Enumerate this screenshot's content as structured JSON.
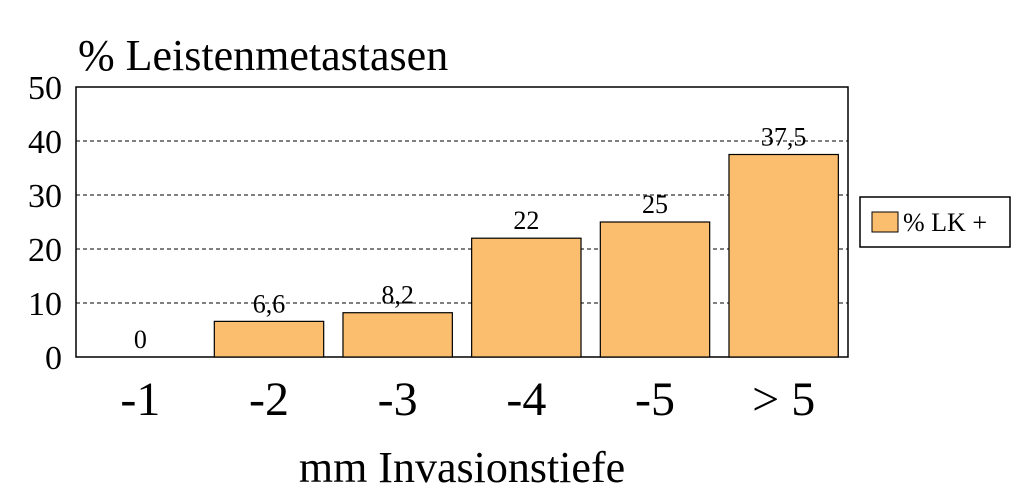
{
  "chart_data": {
    "type": "bar",
    "title": "% Leistenmetastasen",
    "xlabel": "mm Invasionstiefe",
    "ylabel": "",
    "categories": [
      "-1",
      "-2",
      "-3",
      "-4",
      "-5",
      "> 5"
    ],
    "series": [
      {
        "name": "% LK +",
        "values": [
          0,
          6.6,
          8.2,
          22,
          25,
          37.5
        ],
        "labels": [
          "0",
          "6,6",
          "8,2",
          "22",
          "25",
          "37,5"
        ],
        "color": "#fbbe6e"
      }
    ],
    "ylim": [
      0,
      50
    ],
    "yticks": [
      "0",
      "10",
      "20",
      "30",
      "40",
      "50"
    ],
    "grid": true,
    "legend_position": "right"
  }
}
